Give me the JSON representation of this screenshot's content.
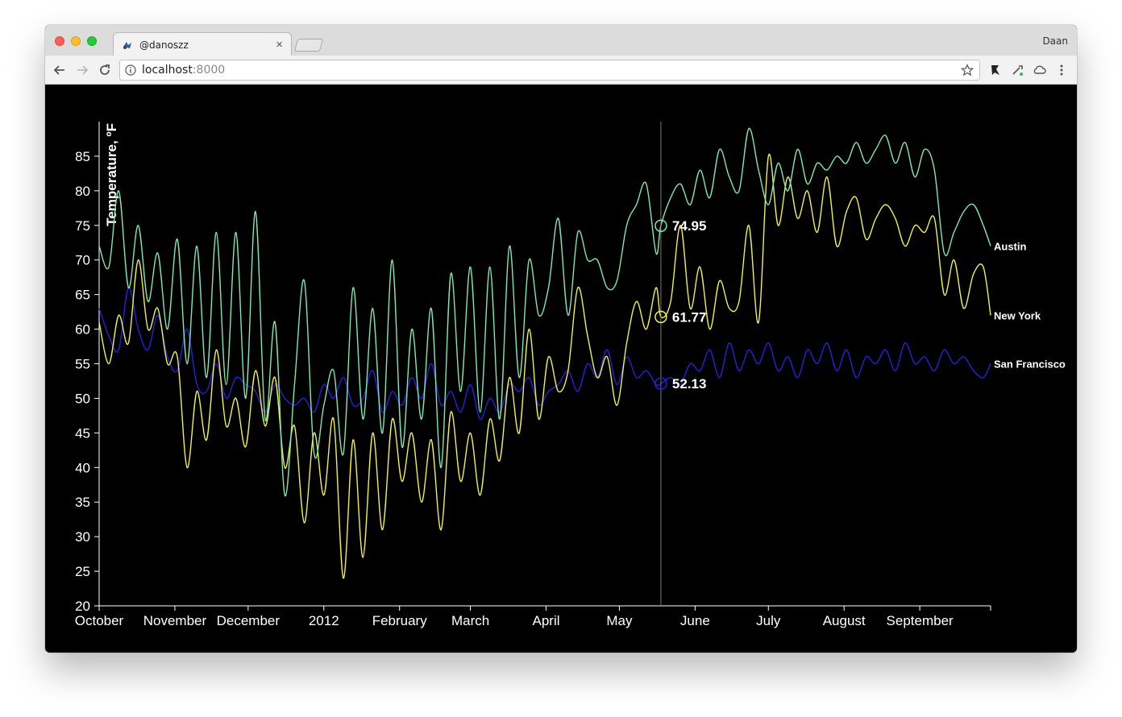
{
  "browser": {
    "tab_title": "@danoszz",
    "profile_name": "Daan",
    "url_host": "localhost",
    "url_port": ":8000",
    "icons": [
      "back-arrow-icon",
      "forward-arrow-icon",
      "reload-icon",
      "info-icon",
      "star-icon",
      "extension-icon",
      "wrench-icon",
      "cloud-icon",
      "menu-icon"
    ]
  },
  "colors": {
    "background": "#000000",
    "Austin": "#7fe8b0",
    "New York": "#f2f04a",
    "San Francisco": "#2a1ed8",
    "axis": "#ffffff",
    "cursor_line": "#777777"
  },
  "chart_data": {
    "type": "line",
    "ylabel": "Temperature, ºF",
    "xlabel": "",
    "ylim": [
      20,
      90
    ],
    "yticks": [
      20,
      25,
      30,
      35,
      40,
      45,
      50,
      55,
      60,
      65,
      70,
      75,
      80,
      85
    ],
    "xlim": [
      "2011-10-01",
      "2012-09-30"
    ],
    "xticks": [
      {
        "label": "October",
        "date": "2011-10-01"
      },
      {
        "label": "November",
        "date": "2011-11-01"
      },
      {
        "label": "December",
        "date": "2011-12-01"
      },
      {
        "label": "2012",
        "date": "2012-01-01"
      },
      {
        "label": "February",
        "date": "2012-02-01"
      },
      {
        "label": "March",
        "date": "2012-03-01"
      },
      {
        "label": "April",
        "date": "2012-04-01"
      },
      {
        "label": "May",
        "date": "2012-05-01"
      },
      {
        "label": "June",
        "date": "2012-06-01"
      },
      {
        "label": "July",
        "date": "2012-07-01"
      },
      {
        "label": "August",
        "date": "2012-08-01"
      },
      {
        "label": "September",
        "date": "2012-09-01"
      }
    ],
    "grid": false,
    "legend": "line-end labels",
    "hover": {
      "date": "2012-05-18",
      "values": [
        {
          "series": "Austin",
          "label": "74.95"
        },
        {
          "series": "New York",
          "label": "61.77"
        },
        {
          "series": "San Francisco",
          "label": "52.13"
        }
      ]
    },
    "series": [
      {
        "name": "Austin",
        "x": [
          "2011-10-01",
          "2011-10-05",
          "2011-10-09",
          "2011-10-13",
          "2011-10-17",
          "2011-10-21",
          "2011-10-25",
          "2011-10-29",
          "2011-11-02",
          "2011-11-06",
          "2011-11-10",
          "2011-11-14",
          "2011-11-18",
          "2011-11-22",
          "2011-11-26",
          "2011-11-30",
          "2011-12-04",
          "2011-12-08",
          "2011-12-12",
          "2011-12-16",
          "2011-12-20",
          "2011-12-24",
          "2011-12-28",
          "2012-01-01",
          "2012-01-05",
          "2012-01-09",
          "2012-01-13",
          "2012-01-17",
          "2012-01-21",
          "2012-01-25",
          "2012-01-29",
          "2012-02-02",
          "2012-02-06",
          "2012-02-10",
          "2012-02-14",
          "2012-02-18",
          "2012-02-22",
          "2012-02-26",
          "2012-03-01",
          "2012-03-05",
          "2012-03-09",
          "2012-03-13",
          "2012-03-17",
          "2012-03-21",
          "2012-03-25",
          "2012-03-29",
          "2012-04-02",
          "2012-04-06",
          "2012-04-10",
          "2012-04-14",
          "2012-04-18",
          "2012-04-22",
          "2012-04-26",
          "2012-04-30",
          "2012-05-04",
          "2012-05-08",
          "2012-05-12",
          "2012-05-16",
          "2012-05-18",
          "2012-05-22",
          "2012-05-26",
          "2012-05-30",
          "2012-06-03",
          "2012-06-07",
          "2012-06-11",
          "2012-06-15",
          "2012-06-19",
          "2012-06-23",
          "2012-06-27",
          "2012-07-01",
          "2012-07-05",
          "2012-07-09",
          "2012-07-13",
          "2012-07-17",
          "2012-07-21",
          "2012-07-25",
          "2012-07-29",
          "2012-08-02",
          "2012-08-06",
          "2012-08-10",
          "2012-08-14",
          "2012-08-18",
          "2012-08-22",
          "2012-08-26",
          "2012-08-30",
          "2012-09-03",
          "2012-09-07",
          "2012-09-11",
          "2012-09-15",
          "2012-09-19",
          "2012-09-23",
          "2012-09-27",
          "2012-09-30"
        ],
        "values": [
          72,
          69,
          80,
          66,
          75,
          64,
          71,
          60,
          73,
          55,
          72,
          53,
          74,
          52,
          74,
          50,
          77,
          47,
          61,
          36,
          52,
          67,
          42,
          49,
          54,
          42,
          66,
          47,
          63,
          45,
          70,
          43,
          60,
          47,
          63,
          40,
          68,
          51,
          69,
          48,
          69,
          47,
          72,
          53,
          70,
          62,
          66,
          76,
          62,
          74,
          70,
          70,
          66,
          67,
          75,
          78,
          81,
          71,
          74.95,
          79,
          81,
          78,
          83,
          79,
          86,
          82,
          80,
          89,
          83,
          78,
          84,
          80,
          86,
          81,
          84,
          83,
          85,
          84,
          87,
          84,
          86,
          88,
          84,
          87,
          82,
          86,
          83,
          71,
          74,
          77,
          78,
          75,
          72
        ]
      },
      {
        "name": "New York",
        "x": [
          "2011-10-01",
          "2011-10-05",
          "2011-10-09",
          "2011-10-13",
          "2011-10-17",
          "2011-10-21",
          "2011-10-25",
          "2011-10-29",
          "2011-11-02",
          "2011-11-06",
          "2011-11-10",
          "2011-11-14",
          "2011-11-18",
          "2011-11-22",
          "2011-11-26",
          "2011-11-30",
          "2011-12-04",
          "2011-12-08",
          "2011-12-12",
          "2011-12-16",
          "2011-12-20",
          "2011-12-24",
          "2011-12-28",
          "2012-01-01",
          "2012-01-05",
          "2012-01-09",
          "2012-01-13",
          "2012-01-17",
          "2012-01-21",
          "2012-01-25",
          "2012-01-29",
          "2012-02-02",
          "2012-02-06",
          "2012-02-10",
          "2012-02-14",
          "2012-02-18",
          "2012-02-22",
          "2012-02-26",
          "2012-03-01",
          "2012-03-05",
          "2012-03-09",
          "2012-03-13",
          "2012-03-17",
          "2012-03-21",
          "2012-03-25",
          "2012-03-29",
          "2012-04-02",
          "2012-04-06",
          "2012-04-10",
          "2012-04-14",
          "2012-04-18",
          "2012-04-22",
          "2012-04-26",
          "2012-04-30",
          "2012-05-04",
          "2012-05-08",
          "2012-05-12",
          "2012-05-16",
          "2012-05-18",
          "2012-05-22",
          "2012-05-26",
          "2012-05-30",
          "2012-06-03",
          "2012-06-07",
          "2012-06-11",
          "2012-06-15",
          "2012-06-19",
          "2012-06-23",
          "2012-06-27",
          "2012-07-01",
          "2012-07-05",
          "2012-07-09",
          "2012-07-13",
          "2012-07-17",
          "2012-07-21",
          "2012-07-25",
          "2012-07-29",
          "2012-08-02",
          "2012-08-06",
          "2012-08-10",
          "2012-08-14",
          "2012-08-18",
          "2012-08-22",
          "2012-08-26",
          "2012-08-30",
          "2012-09-03",
          "2012-09-07",
          "2012-09-11",
          "2012-09-15",
          "2012-09-19",
          "2012-09-23",
          "2012-09-27",
          "2012-09-30"
        ],
        "values": [
          61,
          55,
          62,
          58,
          70,
          60,
          63,
          55,
          56,
          40,
          51,
          44,
          57,
          46,
          50,
          43,
          54,
          46,
          53,
          40,
          46,
          32,
          45,
          36,
          47,
          24,
          44,
          27,
          45,
          31,
          47,
          38,
          45,
          35,
          44,
          31,
          48,
          38,
          45,
          36,
          47,
          41,
          53,
          45,
          60,
          47,
          56,
          51,
          54,
          66,
          59,
          53,
          56,
          49,
          58,
          64,
          60,
          66,
          61.77,
          64,
          75,
          63,
          69,
          60,
          67,
          63,
          64,
          75,
          61,
          85,
          75,
          82,
          76,
          80,
          74,
          82,
          72,
          77,
          79,
          73,
          76,
          78,
          76,
          72,
          75,
          74,
          76,
          65,
          70,
          63,
          68,
          69,
          62
        ]
      },
      {
        "name": "San Francisco",
        "x": [
          "2011-10-01",
          "2011-10-05",
          "2011-10-09",
          "2011-10-13",
          "2011-10-17",
          "2011-10-21",
          "2011-10-25",
          "2011-10-29",
          "2011-11-02",
          "2011-11-06",
          "2011-11-10",
          "2011-11-14",
          "2011-11-18",
          "2011-11-22",
          "2011-11-26",
          "2011-11-30",
          "2011-12-04",
          "2011-12-08",
          "2011-12-12",
          "2011-12-16",
          "2011-12-20",
          "2011-12-24",
          "2011-12-28",
          "2012-01-01",
          "2012-01-05",
          "2012-01-09",
          "2012-01-13",
          "2012-01-17",
          "2012-01-21",
          "2012-01-25",
          "2012-01-29",
          "2012-02-02",
          "2012-02-06",
          "2012-02-10",
          "2012-02-14",
          "2012-02-18",
          "2012-02-22",
          "2012-02-26",
          "2012-03-01",
          "2012-03-05",
          "2012-03-09",
          "2012-03-13",
          "2012-03-17",
          "2012-03-21",
          "2012-03-25",
          "2012-03-29",
          "2012-04-02",
          "2012-04-06",
          "2012-04-10",
          "2012-04-14",
          "2012-04-18",
          "2012-04-22",
          "2012-04-26",
          "2012-04-30",
          "2012-05-04",
          "2012-05-08",
          "2012-05-12",
          "2012-05-16",
          "2012-05-18",
          "2012-05-22",
          "2012-05-26",
          "2012-05-30",
          "2012-06-03",
          "2012-06-07",
          "2012-06-11",
          "2012-06-15",
          "2012-06-19",
          "2012-06-23",
          "2012-06-27",
          "2012-07-01",
          "2012-07-05",
          "2012-07-09",
          "2012-07-13",
          "2012-07-17",
          "2012-07-21",
          "2012-07-25",
          "2012-07-29",
          "2012-08-02",
          "2012-08-06",
          "2012-08-10",
          "2012-08-14",
          "2012-08-18",
          "2012-08-22",
          "2012-08-26",
          "2012-08-30",
          "2012-09-03",
          "2012-09-07",
          "2012-09-11",
          "2012-09-15",
          "2012-09-19",
          "2012-09-23",
          "2012-09-27",
          "2012-09-30"
        ],
        "values": [
          63,
          59,
          57,
          66,
          60,
          57,
          62,
          56,
          54,
          60,
          52,
          51,
          55,
          50,
          53,
          52,
          51,
          48,
          52,
          50,
          49,
          50,
          48,
          52,
          50,
          53,
          49,
          50,
          54,
          48,
          51,
          49,
          53,
          50,
          55,
          49,
          51,
          48,
          52,
          47,
          50,
          48,
          52,
          51,
          53,
          49,
          51,
          52,
          54,
          51,
          55,
          53,
          57,
          52,
          56,
          53,
          54,
          52,
          52.13,
          53,
          52,
          55,
          54,
          57,
          53,
          58,
          54,
          57,
          55,
          58,
          54,
          56,
          53,
          57,
          55,
          58,
          54,
          57,
          53,
          56,
          55,
          57,
          54,
          58,
          55,
          56,
          54,
          57,
          55,
          56,
          54,
          53,
          55
        ]
      }
    ]
  }
}
